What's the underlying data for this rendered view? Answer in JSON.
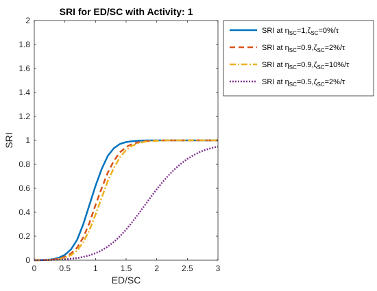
{
  "chart_data": {
    "type": "line",
    "title": "SRI for ED/SC with Activity: 1",
    "xlabel": "ED/SC",
    "ylabel": "SRI",
    "xlim": [
      0,
      3
    ],
    "ylim": [
      0,
      2
    ],
    "xticks": [
      0,
      0.5,
      1,
      1.5,
      2,
      2.5,
      3
    ],
    "xtick_labels": [
      "0",
      "0.5",
      "1",
      "1.5",
      "2",
      "2.5",
      "3"
    ],
    "yticks": [
      0,
      0.2,
      0.4,
      0.6,
      0.8,
      1,
      1.2,
      1.4,
      1.6,
      1.8,
      2
    ],
    "ytick_labels": [
      "0",
      "0.2",
      "0.4",
      "0.6",
      "0.8",
      "1",
      "1.2",
      "1.4",
      "1.6",
      "1.8",
      "2"
    ],
    "grid": false,
    "legend_position": "outside-top-right",
    "x": [
      0,
      0.1,
      0.2,
      0.3,
      0.4,
      0.5,
      0.6,
      0.7,
      0.8,
      0.9,
      1.0,
      1.1,
      1.2,
      1.3,
      1.4,
      1.5,
      1.6,
      1.7,
      1.8,
      1.9,
      2.0,
      2.1,
      2.2,
      2.3,
      2.4,
      2.5,
      2.6,
      2.7,
      2.8,
      2.9,
      3.0
    ],
    "series": [
      {
        "name": "SRI at ηSC=1, ζSC=0%/τ",
        "legend": {
          "pre": "SRI at η",
          "sub1": "SC",
          "mid": "=1,ζ",
          "sub2": "SC",
          "post": "=0%/τ"
        },
        "color": "#0072BD",
        "dash": "solid",
        "width": 2.5,
        "values": [
          0,
          0.001,
          0.003,
          0.008,
          0.02,
          0.045,
          0.09,
          0.17,
          0.3,
          0.46,
          0.62,
          0.76,
          0.87,
          0.935,
          0.97,
          0.986,
          0.993,
          0.997,
          0.999,
          1,
          1,
          1,
          1,
          1,
          1,
          1,
          1,
          1,
          1,
          1,
          1
        ]
      },
      {
        "name": "SRI at ηSC=0.9, ζSC=2%/τ",
        "legend": {
          "pre": "SRI at η",
          "sub1": "SC",
          "mid": "=0.9,ζ",
          "sub2": "SC",
          "post": "=2%/τ"
        },
        "color": "#D95319",
        "dash": "8 5",
        "width": 2.5,
        "values": [
          0,
          0.001,
          0.002,
          0.005,
          0.012,
          0.028,
          0.056,
          0.105,
          0.19,
          0.31,
          0.46,
          0.6,
          0.73,
          0.83,
          0.9,
          0.945,
          0.97,
          0.984,
          0.992,
          0.996,
          0.998,
          0.999,
          1,
          1,
          1,
          1,
          1,
          1,
          1,
          1,
          1
        ]
      },
      {
        "name": "SRI at ηSC=0.9, ζSC=10%/τ",
        "legend": {
          "pre": "SRI at η",
          "sub1": "SC",
          "mid": "=0.9,ζ",
          "sub2": "SC",
          "post": "=10%/τ"
        },
        "color": "#EDB120",
        "dash": "9 3 2 3",
        "width": 2.5,
        "values": [
          0,
          0.001,
          0.002,
          0.004,
          0.009,
          0.02,
          0.042,
          0.08,
          0.15,
          0.25,
          0.38,
          0.52,
          0.66,
          0.77,
          0.86,
          0.92,
          0.955,
          0.976,
          0.988,
          0.994,
          0.997,
          0.999,
          1,
          1,
          1,
          1,
          1,
          1,
          1,
          1,
          1
        ]
      },
      {
        "name": "SRI at ηSC=0.5, ζSC=2%/τ",
        "legend": {
          "pre": "SRI at η",
          "sub1": "SC",
          "mid": "=0.5,ζ",
          "sub2": "SC",
          "post": "=2%/τ"
        },
        "color": "#7E2F8E",
        "dash": "2 2",
        "width": 2.5,
        "values": [
          0,
          0.001,
          0.002,
          0.003,
          0.005,
          0.008,
          0.012,
          0.018,
          0.027,
          0.04,
          0.058,
          0.082,
          0.113,
          0.153,
          0.2,
          0.255,
          0.318,
          0.385,
          0.455,
          0.525,
          0.592,
          0.655,
          0.712,
          0.763,
          0.807,
          0.845,
          0.876,
          0.902,
          0.922,
          0.937,
          0.948
        ]
      }
    ]
  }
}
